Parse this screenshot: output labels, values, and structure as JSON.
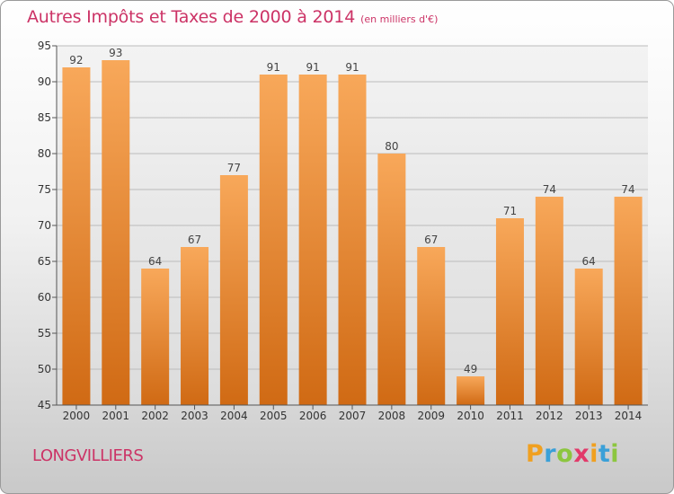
{
  "title": "Autres Impôts et Taxes de 2000 à 2014",
  "unit_note": "(en milliers d'€)",
  "commune": "LONGVILLIERS",
  "logo": {
    "text": "Proxiti",
    "letters": [
      {
        "char": "P",
        "color": "#f0a020"
      },
      {
        "char": "r",
        "color": "#3aa0d8"
      },
      {
        "char": "o",
        "color": "#8cc63f"
      },
      {
        "char": "x",
        "color": "#e23a6a"
      },
      {
        "char": "i",
        "color": "#f0a020"
      },
      {
        "char": "t",
        "color": "#3aa0d8"
      },
      {
        "char": "i",
        "color": "#8cc63f"
      }
    ]
  },
  "colors": {
    "title": "#cc3366",
    "bar_light": "#f8a85a",
    "bar_dark": "#d06a14",
    "grid": "#bbbbbb"
  },
  "chart_data": {
    "type": "bar",
    "categories": [
      "2000",
      "2001",
      "2002",
      "2003",
      "2004",
      "2005",
      "2006",
      "2007",
      "2008",
      "2009",
      "2010",
      "2011",
      "2012",
      "2013",
      "2014"
    ],
    "values": [
      92,
      93,
      64,
      67,
      77,
      91,
      91,
      91,
      80,
      67,
      49,
      71,
      74,
      64,
      74
    ],
    "ylim": [
      45,
      95
    ],
    "yticks": [
      45,
      50,
      55,
      60,
      65,
      70,
      75,
      80,
      85,
      90,
      95
    ],
    "grid": true,
    "data_labels": true
  }
}
